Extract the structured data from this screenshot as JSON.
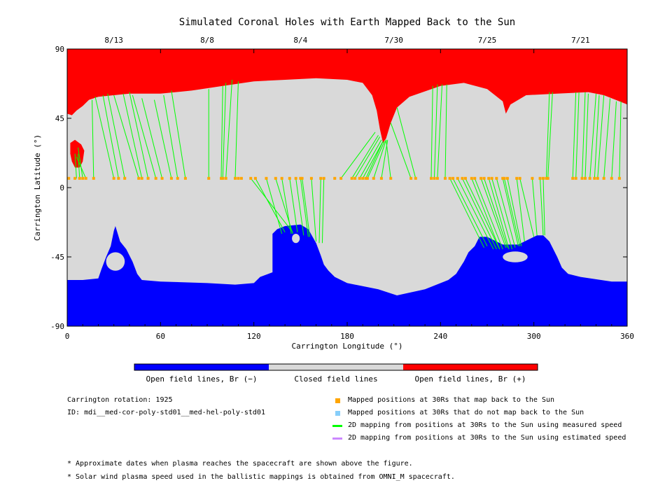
{
  "chart_data": {
    "type": "map",
    "title": "Simulated Coronal Holes with Earth Mapped Back to the Sun",
    "xlabel": "Carrington Longitude (°)",
    "ylabel": "Carrington Latitude (°)",
    "xlim": [
      0,
      360
    ],
    "ylim": [
      -90,
      90
    ],
    "xticks": [
      0,
      60,
      120,
      180,
      240,
      300,
      360
    ],
    "yticks": [
      -90,
      -45,
      0,
      45,
      90
    ],
    "top_dates": [
      {
        "label": "8/13",
        "lon": 30
      },
      {
        "label": "8/8",
        "lon": 90
      },
      {
        "label": "8/4",
        "lon": 150
      },
      {
        "label": "7/30",
        "lon": 210
      },
      {
        "label": "7/25",
        "lon": 270
      },
      {
        "label": "7/21",
        "lon": 330
      }
    ],
    "colorbar": {
      "segments": [
        {
          "label": "Open field lines, Br (−)",
          "color": "#0000ff"
        },
        {
          "label": "Closed field lines",
          "color": "#d9d9d9"
        },
        {
          "label": "Open field lines, Br (+)",
          "color": "#ff0000"
        }
      ]
    },
    "colors": {
      "open_negative": "#0000ff",
      "closed": "#d9d9d9",
      "open_positive": "#ff0000",
      "mapped": "#ffa500",
      "unmapped": "#87cefa",
      "measured_line": "#00ff00",
      "estimated_line": "#cc88ff"
    },
    "north_boundary": [
      [
        0,
        48
      ],
      [
        3,
        47
      ],
      [
        6,
        50
      ],
      [
        10,
        53
      ],
      [
        14,
        57
      ],
      [
        20,
        59
      ],
      [
        40,
        61
      ],
      [
        60,
        61
      ],
      [
        80,
        63
      ],
      [
        100,
        66
      ],
      [
        120,
        69
      ],
      [
        140,
        70
      ],
      [
        160,
        71
      ],
      [
        180,
        70
      ],
      [
        190,
        68
      ],
      [
        196,
        60
      ],
      [
        199,
        50
      ],
      [
        201,
        38
      ],
      [
        203,
        29
      ],
      [
        205,
        32
      ],
      [
        208,
        42
      ],
      [
        212,
        52
      ],
      [
        220,
        59
      ],
      [
        240,
        66
      ],
      [
        255,
        68
      ],
      [
        270,
        64
      ],
      [
        280,
        56
      ],
      [
        282,
        48
      ],
      [
        285,
        54
      ],
      [
        295,
        60
      ],
      [
        315,
        61
      ],
      [
        335,
        62
      ],
      [
        345,
        60
      ],
      [
        355,
        56
      ],
      [
        360,
        54
      ]
    ],
    "south_boundary": [
      [
        0,
        -60
      ],
      [
        10,
        -60
      ],
      [
        20,
        -59
      ],
      [
        22,
        -53
      ],
      [
        25,
        -45
      ],
      [
        28,
        -38
      ],
      [
        30,
        -28
      ],
      [
        31,
        -25
      ],
      [
        34,
        -35
      ],
      [
        38,
        -40
      ],
      [
        42,
        -48
      ],
      [
        45,
        -56
      ],
      [
        48,
        -60
      ],
      [
        60,
        -61
      ],
      [
        90,
        -62
      ],
      [
        108,
        -63
      ],
      [
        120,
        -62
      ],
      [
        124,
        -58
      ],
      [
        132,
        -55
      ],
      [
        132,
        -30
      ],
      [
        135,
        -27
      ],
      [
        140,
        -25
      ],
      [
        150,
        -24
      ],
      [
        155,
        -27
      ],
      [
        160,
        -36
      ],
      [
        163,
        -44
      ],
      [
        165,
        -50
      ],
      [
        168,
        -54
      ],
      [
        172,
        -58
      ],
      [
        180,
        -62
      ],
      [
        200,
        -66
      ],
      [
        212,
        -70
      ],
      [
        230,
        -66
      ],
      [
        245,
        -60
      ],
      [
        250,
        -56
      ],
      [
        255,
        -48
      ],
      [
        258,
        -42
      ],
      [
        262,
        -38
      ],
      [
        265,
        -32
      ],
      [
        270,
        -32
      ],
      [
        280,
        -37
      ],
      [
        290,
        -37
      ],
      [
        296,
        -34
      ],
      [
        302,
        -31
      ],
      [
        306,
        -31
      ],
      [
        310,
        -35
      ],
      [
        315,
        -45
      ],
      [
        318,
        -52
      ],
      [
        322,
        -56
      ],
      [
        330,
        -58
      ],
      [
        350,
        -61
      ],
      [
        360,
        -61
      ]
    ],
    "positive_island": [
      [
        2,
        29
      ],
      [
        5,
        31
      ],
      [
        9,
        28
      ],
      [
        11,
        24
      ],
      [
        10,
        17
      ],
      [
        8,
        13
      ],
      [
        5,
        13
      ],
      [
        3,
        17
      ],
      [
        2,
        22
      ]
    ],
    "southern_holes": [
      {
        "cx": 31,
        "cy": -48,
        "rx": 6,
        "ry": 6
      },
      {
        "cx": 147,
        "cy": -33,
        "rx": 2.5,
        "ry": 3
      },
      {
        "cx": 288,
        "cy": -45,
        "rx": 8,
        "ry": 3.5
      }
    ],
    "mapped_longitudes": [
      1,
      5,
      8,
      10,
      12,
      17,
      30,
      33,
      37,
      46,
      48,
      52,
      57,
      61,
      67,
      71,
      76,
      91,
      99,
      100,
      102,
      108,
      110,
      112,
      118,
      121,
      128,
      134,
      138,
      143,
      147,
      150,
      151,
      157,
      163,
      165,
      172,
      176,
      183,
      185,
      188,
      190,
      192,
      193,
      197,
      202,
      208,
      221,
      224,
      234,
      236,
      238,
      243,
      246,
      248,
      251,
      254,
      256,
      260,
      262,
      266,
      268,
      271,
      273,
      276,
      280,
      281,
      283,
      289,
      291,
      299,
      304,
      306,
      308,
      309,
      325,
      327,
      331,
      333,
      336,
      339,
      341,
      345,
      350,
      355
    ],
    "mapped_latitude": 6,
    "field_lines": [
      [
        [
          6,
          6
        ],
        [
          5,
          22
        ]
      ],
      [
        [
          8,
          6
        ],
        [
          7,
          22
        ]
      ],
      [
        [
          10,
          6
        ],
        [
          7,
          26
        ]
      ],
      [
        [
          12,
          6
        ],
        [
          6,
          20
        ]
      ],
      [
        [
          17,
          6
        ],
        [
          16,
          57
        ]
      ],
      [
        [
          30,
          6
        ],
        [
          18,
          59
        ]
      ],
      [
        [
          33,
          6
        ],
        [
          23,
          60
        ]
      ],
      [
        [
          37,
          6
        ],
        [
          26,
          61
        ]
      ],
      [
        [
          46,
          6
        ],
        [
          30,
          60
        ]
      ],
      [
        [
          48,
          6
        ],
        [
          36,
          61
        ]
      ],
      [
        [
          52,
          6
        ],
        [
          40,
          62
        ]
      ],
      [
        [
          57,
          6
        ],
        [
          42,
          60
        ]
      ],
      [
        [
          61,
          6
        ],
        [
          48,
          58
        ]
      ],
      [
        [
          67,
          6
        ],
        [
          56,
          57
        ]
      ],
      [
        [
          71,
          6
        ],
        [
          62,
          60
        ]
      ],
      [
        [
          76,
          6
        ],
        [
          67,
          63
        ]
      ],
      [
        [
          91,
          6
        ],
        [
          91,
          64
        ]
      ],
      [
        [
          99,
          6
        ],
        [
          100,
          66
        ]
      ],
      [
        [
          100,
          6
        ],
        [
          102,
          68
        ]
      ],
      [
        [
          102,
          6
        ],
        [
          106,
          70
        ]
      ],
      [
        [
          108,
          6
        ],
        [
          110,
          69
        ]
      ],
      [
        [
          118,
          6
        ],
        [
          145,
          -29
        ]
      ],
      [
        [
          121,
          6
        ],
        [
          140,
          -29
        ]
      ],
      [
        [
          128,
          6
        ],
        [
          138,
          -30
        ]
      ],
      [
        [
          134,
          6
        ],
        [
          145,
          -30
        ]
      ],
      [
        [
          138,
          6
        ],
        [
          144,
          -30
        ]
      ],
      [
        [
          143,
          6
        ],
        [
          148,
          -29
        ]
      ],
      [
        [
          147,
          6
        ],
        [
          152,
          -31
        ]
      ],
      [
        [
          150,
          6
        ],
        [
          155,
          -32
        ]
      ],
      [
        [
          151,
          6
        ],
        [
          156,
          -32
        ]
      ],
      [
        [
          157,
          6
        ],
        [
          160,
          -35
        ]
      ],
      [
        [
          163,
          6
        ],
        [
          162,
          -36
        ]
      ],
      [
        [
          165,
          6
        ],
        [
          164,
          -36
        ]
      ],
      [
        [
          176,
          6
        ],
        [
          198,
          36
        ]
      ],
      [
        [
          183,
          6
        ],
        [
          200,
          34
        ]
      ],
      [
        [
          185,
          6
        ],
        [
          201,
          33
        ]
      ],
      [
        [
          188,
          6
        ],
        [
          202,
          31
        ]
      ],
      [
        [
          190,
          6
        ],
        [
          203,
          30
        ]
      ],
      [
        [
          192,
          6
        ],
        [
          203,
          30
        ]
      ],
      [
        [
          193,
          6
        ],
        [
          204,
          30
        ]
      ],
      [
        [
          197,
          6
        ],
        [
          205,
          31
        ]
      ],
      [
        [
          202,
          6
        ],
        [
          206,
          31
        ]
      ],
      [
        [
          208,
          6
        ],
        [
          205,
          31
        ]
      ],
      [
        [
          221,
          6
        ],
        [
          208,
          42
        ]
      ],
      [
        [
          224,
          6
        ],
        [
          212,
          52
        ]
      ],
      [
        [
          234,
          6
        ],
        [
          235,
          66
        ]
      ],
      [
        [
          236,
          6
        ],
        [
          238,
          67
        ]
      ],
      [
        [
          238,
          6
        ],
        [
          241,
          67
        ]
      ],
      [
        [
          243,
          6
        ],
        [
          244,
          67
        ]
      ],
      [
        [
          246,
          6
        ],
        [
          268,
          -39
        ]
      ],
      [
        [
          248,
          6
        ],
        [
          270,
          -38
        ]
      ],
      [
        [
          251,
          6
        ],
        [
          274,
          -40
        ]
      ],
      [
        [
          254,
          6
        ],
        [
          276,
          -40
        ]
      ],
      [
        [
          256,
          6
        ],
        [
          278,
          -40
        ]
      ],
      [
        [
          260,
          6
        ],
        [
          278,
          -40
        ]
      ],
      [
        [
          262,
          6
        ],
        [
          280,
          -40
        ]
      ],
      [
        [
          266,
          6
        ],
        [
          282,
          -39
        ]
      ],
      [
        [
          268,
          6
        ],
        [
          283,
          -39
        ]
      ],
      [
        [
          271,
          6
        ],
        [
          284,
          -40
        ]
      ],
      [
        [
          273,
          6
        ],
        [
          286,
          -40
        ]
      ],
      [
        [
          276,
          6
        ],
        [
          288,
          -39
        ]
      ],
      [
        [
          280,
          6
        ],
        [
          290,
          -38
        ]
      ],
      [
        [
          281,
          6
        ],
        [
          291,
          -38
        ]
      ],
      [
        [
          283,
          6
        ],
        [
          292,
          -38
        ]
      ],
      [
        [
          289,
          6
        ],
        [
          294,
          -35
        ]
      ],
      [
        [
          291,
          6
        ],
        [
          300,
          -32
        ]
      ],
      [
        [
          299,
          6
        ],
        [
          302,
          -31
        ]
      ],
      [
        [
          304,
          6
        ],
        [
          306,
          -31
        ]
      ],
      [
        [
          306,
          6
        ],
        [
          307,
          -31
        ]
      ],
      [
        [
          308,
          6
        ],
        [
          310,
          62
        ]
      ],
      [
        [
          309,
          6
        ],
        [
          312,
          62
        ]
      ],
      [
        [
          325,
          6
        ],
        [
          327,
          62
        ]
      ],
      [
        [
          327,
          6
        ],
        [
          329,
          62
        ]
      ],
      [
        [
          331,
          6
        ],
        [
          333,
          62
        ]
      ],
      [
        [
          333,
          6
        ],
        [
          335,
          61
        ]
      ],
      [
        [
          336,
          6
        ],
        [
          340,
          61
        ]
      ],
      [
        [
          339,
          6
        ],
        [
          342,
          60
        ]
      ],
      [
        [
          341,
          6
        ],
        [
          345,
          60
        ]
      ],
      [
        [
          345,
          6
        ],
        [
          349,
          58
        ]
      ],
      [
        [
          350,
          6
        ],
        [
          353,
          56
        ]
      ],
      [
        [
          355,
          6
        ],
        [
          356,
          56
        ]
      ]
    ]
  },
  "info": {
    "rotation": "Carrington rotation: 1925",
    "id": "ID: mdi__med-cor-poly-std01__med-hel-poly-std01"
  },
  "legend": [
    {
      "label": "Mapped positions at 30Rs that map back to the Sun",
      "kind": "square",
      "color": "#ffa500"
    },
    {
      "label": "Mapped positions at 30Rs that do not map back to the Sun",
      "kind": "square",
      "color": "#87cefa"
    },
    {
      "label": "2D mapping from positions at 30Rs to the Sun using measured speed",
      "kind": "line",
      "color": "#00ff00"
    },
    {
      "label": "2D mapping from positions at 30Rs to the Sun using estimated speed",
      "kind": "line",
      "color": "#cc88ff"
    }
  ],
  "notes": [
    "* Approximate dates when plasma reaches the spacecraft are shown above the figure.",
    "* Solar wind plasma speed used in the ballistic mappings is obtained from OMNI_M spacecraft."
  ]
}
